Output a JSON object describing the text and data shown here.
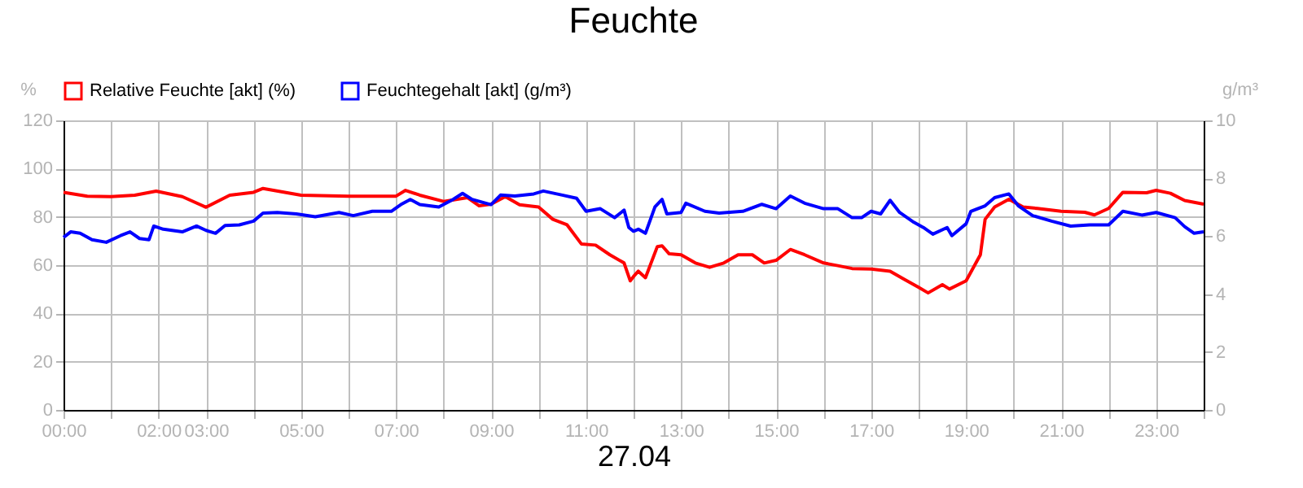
{
  "chart_data": {
    "type": "line",
    "title": "Feuchte",
    "xlabel": "27.04",
    "ylabel": "%",
    "y2label": "g/m³",
    "series": [
      {
        "name": "Relative Feuchte [akt] (%)",
        "color": "#ff0000",
        "x": [
          0,
          0.5,
          1,
          1.5,
          1.95,
          2.5,
          3,
          3.5,
          4,
          4.2,
          5,
          6,
          7,
          7.2,
          7.5,
          8,
          8.5,
          8.75,
          9,
          9.3,
          9.6,
          10,
          10.3,
          10.6,
          10.9,
          11.2,
          11.5,
          11.8,
          11.93,
          12,
          12.1,
          12.25,
          12.5,
          12.6,
          12.75,
          13,
          13.3,
          13.6,
          13.9,
          14.2,
          14.5,
          14.75,
          15,
          15.3,
          15.6,
          16,
          16.3,
          16.6,
          17,
          17.4,
          17.7,
          18,
          18.2,
          18.5,
          18.65,
          19,
          19.3,
          19.4,
          19.6,
          19.9,
          20.2,
          20.5,
          21,
          21.5,
          21.7,
          22,
          22.3,
          22.8,
          23,
          23.3,
          23.6,
          24
        ],
        "values": [
          90.2,
          88.6,
          88.4,
          89,
          90.7,
          88.4,
          84,
          89,
          90.2,
          91.8,
          89,
          88.6,
          88.6,
          91,
          89,
          86.4,
          88,
          84.6,
          85.3,
          88.4,
          85,
          84.1,
          79,
          76.7,
          68.8,
          68.3,
          64.3,
          60.9,
          53.5,
          55.3,
          57.5,
          54.8,
          67.7,
          68,
          64.7,
          64.3,
          60.9,
          59.1,
          60.9,
          64.3,
          64.3,
          60.9,
          62,
          66.5,
          64.3,
          60.9,
          59.8,
          58.6,
          58.4,
          57.5,
          54.1,
          50.8,
          48.5,
          51.9,
          50.1,
          53.5,
          64.3,
          79,
          84.1,
          87.3,
          84.1,
          83.5,
          82.3,
          81.9,
          80.8,
          83.5,
          90.2,
          90,
          91,
          89.8,
          86.8,
          85.3
        ]
      },
      {
        "name": "Feuchtegehalt [akt] (g/m³)",
        "color": "#0000ff",
        "axis": "y2",
        "x": [
          0,
          0.15,
          0.35,
          0.6,
          0.9,
          1.2,
          1.4,
          1.6,
          1.8,
          1.9,
          2.1,
          2.5,
          2.8,
          3,
          3.2,
          3.4,
          3.7,
          4,
          4.2,
          4.5,
          4.9,
          5.3,
          5.8,
          6.1,
          6.5,
          6.9,
          7.1,
          7.3,
          7.5,
          7.9,
          8.2,
          8.4,
          8.6,
          9,
          9.2,
          9.5,
          9.9,
          10.1,
          10.5,
          10.8,
          11,
          11.3,
          11.6,
          11.8,
          11.9,
          12,
          12.1,
          12.25,
          12.45,
          12.6,
          12.7,
          13,
          13.1,
          13.5,
          13.8,
          14.3,
          14.7,
          15,
          15.3,
          15.6,
          16,
          16.3,
          16.6,
          16.8,
          17,
          17.2,
          17.4,
          17.6,
          17.9,
          18.1,
          18.3,
          18.6,
          18.7,
          19,
          19.1,
          19.4,
          19.6,
          19.9,
          20.1,
          20.4,
          20.8,
          21.2,
          21.6,
          22,
          22.3,
          22.7,
          23,
          23.4,
          23.6,
          23.8,
          24
        ],
        "values": [
          5.96,
          6.15,
          6.1,
          5.88,
          5.79,
          6.02,
          6.15,
          5.92,
          5.88,
          6.35,
          6.24,
          6.15,
          6.35,
          6.2,
          6.1,
          6.37,
          6.39,
          6.52,
          6.8,
          6.82,
          6.77,
          6.67,
          6.82,
          6.71,
          6.86,
          6.86,
          7.09,
          7.27,
          7.09,
          7.01,
          7.27,
          7.48,
          7.27,
          7.09,
          7.42,
          7.39,
          7.46,
          7.56,
          7.42,
          7.31,
          6.86,
          6.95,
          6.64,
          6.9,
          6.3,
          6.17,
          6.24,
          6.1,
          7.01,
          7.27,
          6.77,
          6.82,
          7.14,
          6.86,
          6.8,
          6.86,
          7.1,
          6.95,
          7.39,
          7.14,
          6.95,
          6.95,
          6.64,
          6.64,
          6.86,
          6.77,
          7.24,
          6.82,
          6.48,
          6.3,
          6.07,
          6.3,
          6.02,
          6.43,
          6.86,
          7.05,
          7.33,
          7.46,
          7.05,
          6.71,
          6.52,
          6.35,
          6.39,
          6.39,
          6.86,
          6.73,
          6.82,
          6.64,
          6.33,
          6.1,
          6.15
        ]
      }
    ],
    "xlim": [
      0,
      24
    ],
    "xticks": [
      {
        "value": 0,
        "label": "00:00"
      },
      {
        "value": 1,
        "label": null
      },
      {
        "value": 2,
        "label": "02:00"
      },
      {
        "value": 3,
        "label": "03:00"
      },
      {
        "value": 4,
        "label": null
      },
      {
        "value": 5,
        "label": "05:00"
      },
      {
        "value": 6,
        "label": null
      },
      {
        "value": 7,
        "label": "07:00"
      },
      {
        "value": 8,
        "label": null
      },
      {
        "value": 9,
        "label": "09:00"
      },
      {
        "value": 10,
        "label": null
      },
      {
        "value": 11,
        "label": "11:00"
      },
      {
        "value": 12,
        "label": null
      },
      {
        "value": 13,
        "label": "13:00"
      },
      {
        "value": 14,
        "label": null
      },
      {
        "value": 15,
        "label": "15:00"
      },
      {
        "value": 16,
        "label": null
      },
      {
        "value": 17,
        "label": "17:00"
      },
      {
        "value": 18,
        "label": null
      },
      {
        "value": 19,
        "label": "19:00"
      },
      {
        "value": 20,
        "label": null
      },
      {
        "value": 21,
        "label": "21:00"
      },
      {
        "value": 22,
        "label": null
      },
      {
        "value": 23,
        "label": "23:00"
      },
      {
        "value": 24,
        "label": null
      }
    ],
    "ylim": [
      0,
      120
    ],
    "yticks": [
      0,
      20,
      40,
      60,
      80,
      100,
      120
    ],
    "y2lim": [
      0,
      10
    ],
    "y2ticks": [
      0,
      2,
      4,
      6,
      8,
      10
    ],
    "grid": true,
    "legend": "top left",
    "marker": "none",
    "line_style": "solid"
  }
}
